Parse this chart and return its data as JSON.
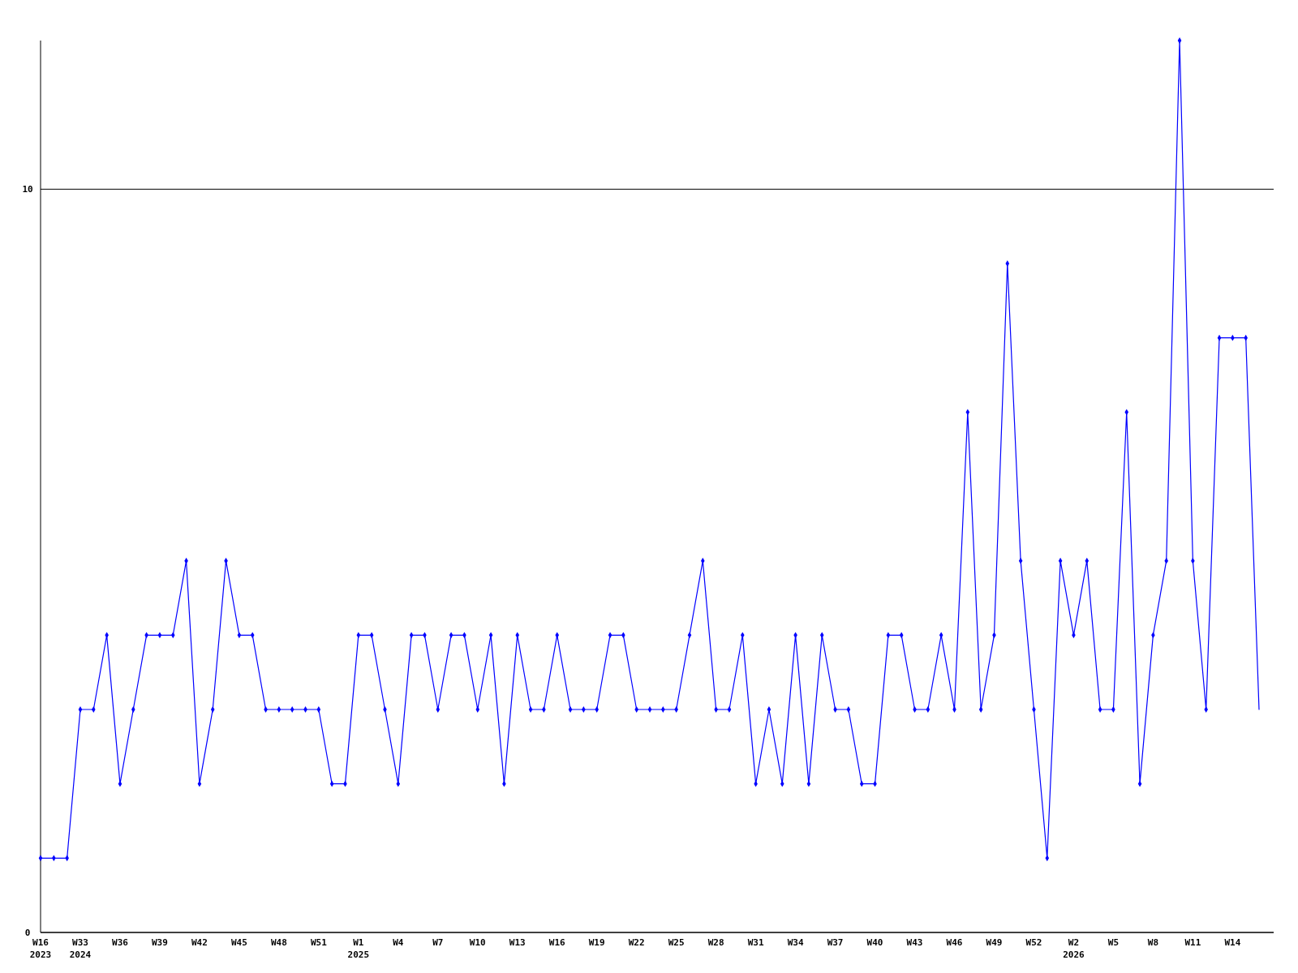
{
  "chart_data": {
    "type": "line",
    "categories": [
      "W16\n2023",
      null,
      null,
      "W33\n2024",
      null,
      null,
      "W36",
      null,
      null,
      "W39",
      null,
      null,
      "W42",
      null,
      null,
      "W45",
      null,
      null,
      "W48",
      null,
      null,
      "W51",
      null,
      null,
      "W1\n2025",
      null,
      null,
      "W4",
      null,
      null,
      "W7",
      null,
      null,
      "W10",
      null,
      null,
      "W13",
      null,
      null,
      "W16",
      null,
      null,
      "W19",
      null,
      null,
      "W22",
      null,
      null,
      "W25",
      null,
      null,
      "W28",
      null,
      null,
      "W31",
      null,
      null,
      "W34",
      null,
      null,
      "W37",
      null,
      null,
      "W40",
      null,
      null,
      "W43",
      null,
      null,
      "W46",
      null,
      null,
      "W49",
      null,
      null,
      "W52",
      null,
      null,
      "W2\n2026",
      null,
      null,
      "W5",
      null,
      null,
      "W8",
      null,
      null,
      "W11",
      null,
      null,
      "W14",
      null,
      null
    ],
    "series": [
      {
        "color": "#0000ff",
        "values": [
          1,
          1,
          1,
          3,
          3,
          4,
          2,
          3,
          4,
          4,
          4,
          5,
          2,
          3,
          5,
          4,
          4,
          3,
          3,
          3,
          3,
          3,
          2,
          2,
          4,
          4,
          3,
          2,
          4,
          4,
          3,
          4,
          4,
          3,
          4,
          2,
          4,
          3,
          3,
          4,
          3,
          3,
          3,
          4,
          4,
          3,
          3,
          3,
          3,
          4,
          5,
          3,
          3,
          4,
          2,
          3,
          2,
          4,
          2,
          4,
          3,
          3,
          2,
          2,
          4,
          4,
          3,
          3,
          4,
          3,
          7,
          3,
          4,
          9,
          5,
          3,
          1,
          5,
          4,
          5,
          3,
          3,
          7,
          2,
          4,
          5,
          12,
          5,
          3,
          8,
          8,
          8,
          3
        ]
      }
    ],
    "ylim": [
      0,
      12
    ],
    "yticks": [
      0,
      10
    ],
    "grid": "y",
    "marker": "diamond",
    "line_style": "solid"
  }
}
